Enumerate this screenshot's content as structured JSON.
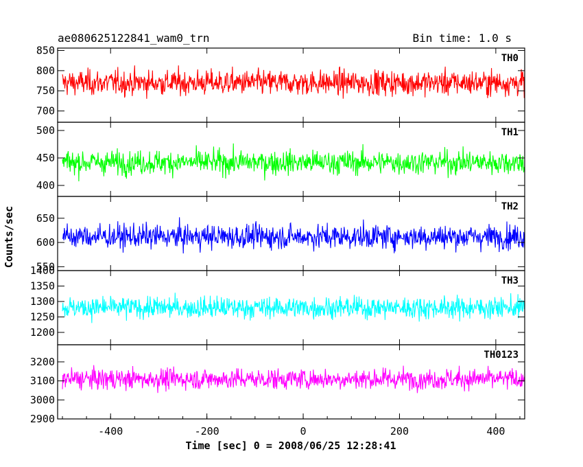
{
  "header": {
    "title": "ae080625122841_wam0_trn",
    "bin_time": "Bin time: 1.0 s"
  },
  "chart_data": {
    "type": "line",
    "title": "ae080625122841_wam0_trn",
    "xlabel": "Time [sec] 0 = 2008/06/25 12:28:41",
    "ylabel": "Counts/sec",
    "xlim": [
      -510,
      460
    ],
    "x_ticks": [
      -400,
      -200,
      0,
      200,
      400
    ],
    "x_start": -500,
    "x_end": 460,
    "x_step": 1,
    "panels": [
      {
        "name": "TH0",
        "color": "#ff0000",
        "ylim": [
          672,
          856
        ],
        "ticks": [
          700,
          750,
          800,
          850
        ],
        "mean": 770,
        "spread": 40
      },
      {
        "name": "TH1",
        "color": "#00ff00",
        "ylim": [
          380,
          515
        ],
        "ticks": [
          400,
          450,
          500
        ],
        "mean": 442,
        "spread": 28
      },
      {
        "name": "TH2",
        "color": "#0000ff",
        "ylim": [
          542,
          695
        ],
        "ticks": [
          550,
          600,
          650
        ],
        "mean": 612,
        "spread": 32
      },
      {
        "name": "TH3",
        "color": "#00ffff",
        "ylim": [
          1160,
          1400
        ],
        "ticks": [
          1200,
          1250,
          1300,
          1350,
          1400
        ],
        "mean": 1280,
        "spread": 45
      },
      {
        "name": "TH0123",
        "color": "#ff00ff",
        "ylim": [
          2900,
          3290
        ],
        "ticks": [
          2900,
          3000,
          3100,
          3200
        ],
        "mean": 3110,
        "spread": 70
      }
    ],
    "grid": false
  }
}
